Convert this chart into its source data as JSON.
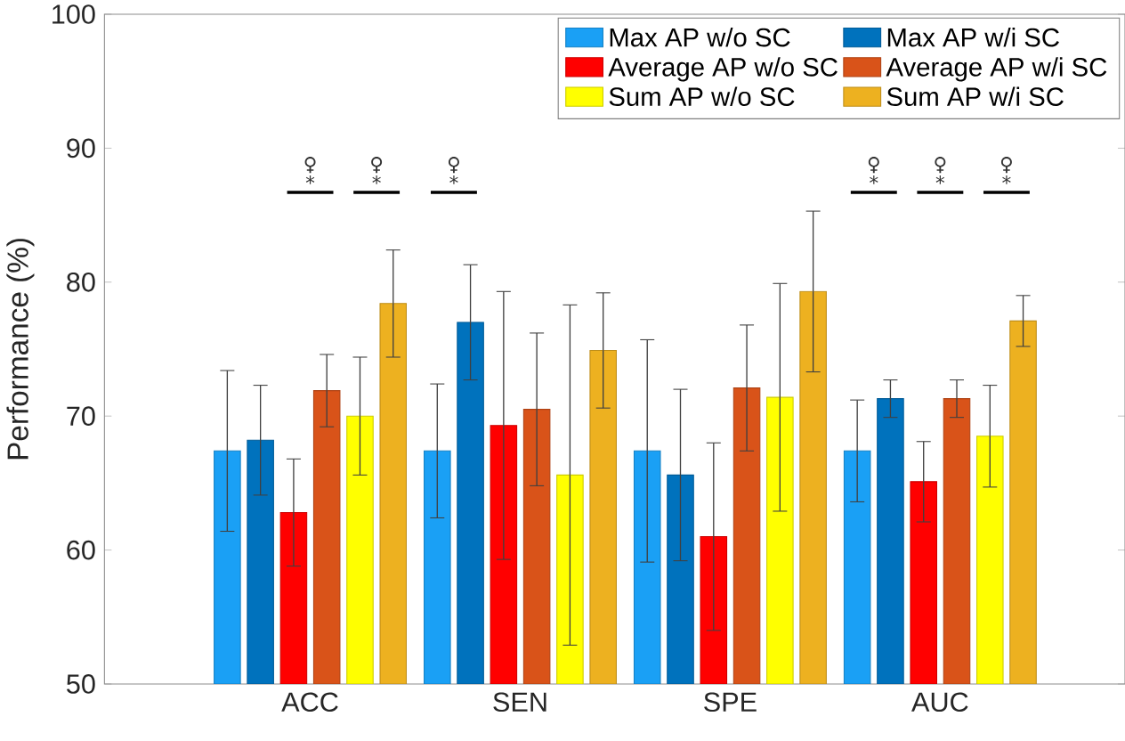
{
  "chart_data": {
    "type": "bar",
    "ylabel": "Performance (%)",
    "categories": [
      "ACC",
      "SEN",
      "SPE",
      "AUC"
    ],
    "series": [
      {
        "name": "Max AP w/o SC",
        "color": "#1aa0f5",
        "values": [
          67.4,
          67.4,
          67.4,
          67.4
        ],
        "errors": [
          6,
          5,
          8.3,
          3.8
        ]
      },
      {
        "name": "Max AP w/i SC",
        "color": "#0072bd",
        "values": [
          68.2,
          77.0,
          65.6,
          71.3
        ],
        "errors": [
          4.1,
          4.3,
          6.4,
          1.4
        ]
      },
      {
        "name": "Average AP w/o SC",
        "color": "#ff0000",
        "values": [
          62.8,
          69.3,
          61.0,
          65.1
        ],
        "errors": [
          4,
          10,
          7,
          3
        ]
      },
      {
        "name": "Average AP w/i SC",
        "color": "#d95319",
        "values": [
          71.9,
          70.5,
          72.1,
          71.3
        ],
        "errors": [
          2.7,
          5.7,
          4.7,
          1.4
        ]
      },
      {
        "name": "Sum AP w/o SC",
        "color": "#ffff00",
        "values": [
          70.0,
          65.6,
          71.4,
          68.5
        ],
        "errors": [
          4.4,
          12.7,
          8.5,
          3.8
        ]
      },
      {
        "name": "Sum AP w/i SC",
        "color": "#edb120",
        "values": [
          78.4,
          74.9,
          79.3,
          77.1
        ],
        "errors": [
          4,
          4.3,
          6,
          1.9
        ]
      }
    ],
    "ylim": [
      50,
      100
    ],
    "yticks": [
      50,
      60,
      70,
      80,
      90,
      100
    ],
    "legend": "top right",
    "annotations": [
      "♀ *",
      "♀ *",
      "♀ *",
      "♀ *",
      "♀ *",
      "♀ *"
    ]
  }
}
